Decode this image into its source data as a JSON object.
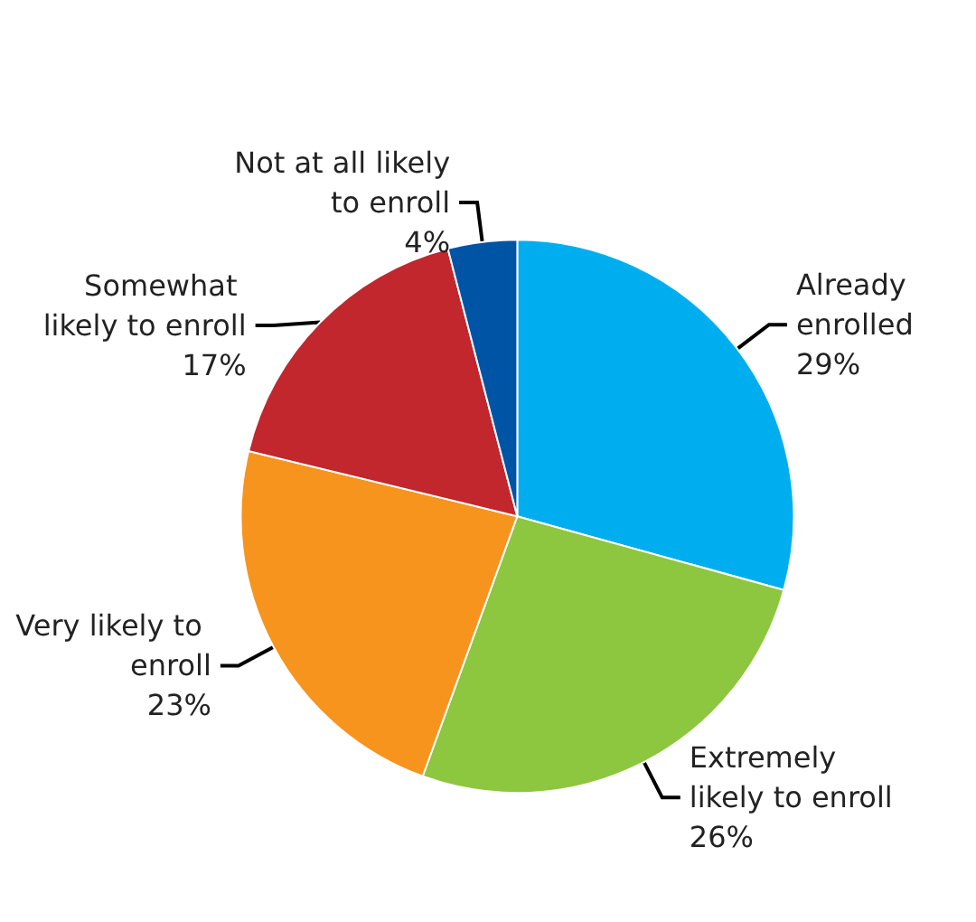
{
  "chart_data": {
    "type": "pie",
    "categories": [
      "Already enrolled",
      "Extremely likely to enroll",
      "Very likely to enroll",
      "Somewhat likely to enroll",
      "Not at all likely to enroll"
    ],
    "values": [
      29,
      26,
      23,
      17,
      4
    ],
    "value_labels": [
      "29%",
      "26%",
      "23%",
      "17%",
      "4%"
    ],
    "colors": [
      "#00aeef",
      "#8dc63f",
      "#f7941d",
      "#c1272d",
      "#0054a6"
    ]
  }
}
